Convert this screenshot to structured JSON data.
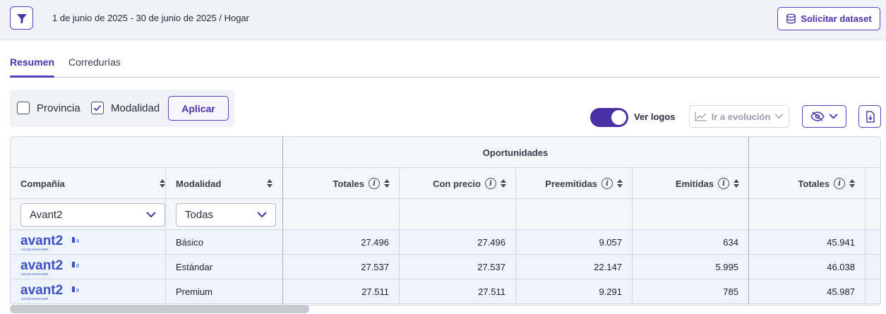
{
  "header": {
    "breadcrumb": "1 de junio de 2025 - 30 de junio de 2025 / Hogar",
    "dataset_button": "Solicitar dataset"
  },
  "tabs": [
    {
      "label": "Resumen",
      "active": true
    },
    {
      "label": "Corredurías",
      "active": false
    }
  ],
  "filters": {
    "provincia": {
      "label": "Provincia",
      "checked": false
    },
    "modalidad": {
      "label": "Modalidad",
      "checked": true
    },
    "apply": "Aplicar"
  },
  "toolbar": {
    "ver_logos": "Ver logos",
    "ver_logos_on": true,
    "evolucion": "Ir a evolución"
  },
  "table": {
    "group_header": "Oportunidades",
    "columns": {
      "compania": "Compañía",
      "modalidad": "Modalidad",
      "totales": "Totales",
      "con_precio": "Con precio",
      "preemitidas": "Preemitidas",
      "emitidas": "Emitidas",
      "totales2": "Totales"
    },
    "filter_values": {
      "compania": "Avant2",
      "modalidad": "Todas"
    },
    "logo": {
      "text": "avant2",
      "sub": "SALES MANAGER"
    },
    "rows": [
      {
        "modalidad": "Básico",
        "totales": "27.496",
        "con_precio": "27.496",
        "preemitidas": "9.057",
        "emitidas": "634",
        "totales2": "45.941"
      },
      {
        "modalidad": "Estándar",
        "totales": "27.537",
        "con_precio": "27.537",
        "preemitidas": "22.147",
        "emitidas": "5.995",
        "totales2": "46.038"
      },
      {
        "modalidad": "Premium",
        "totales": "27.511",
        "con_precio": "27.511",
        "preemitidas": "9.291",
        "emitidas": "785",
        "totales2": "45.987"
      }
    ]
  },
  "colors": {
    "accent": "#4a2fa6",
    "logo": "#3d4fc4"
  }
}
